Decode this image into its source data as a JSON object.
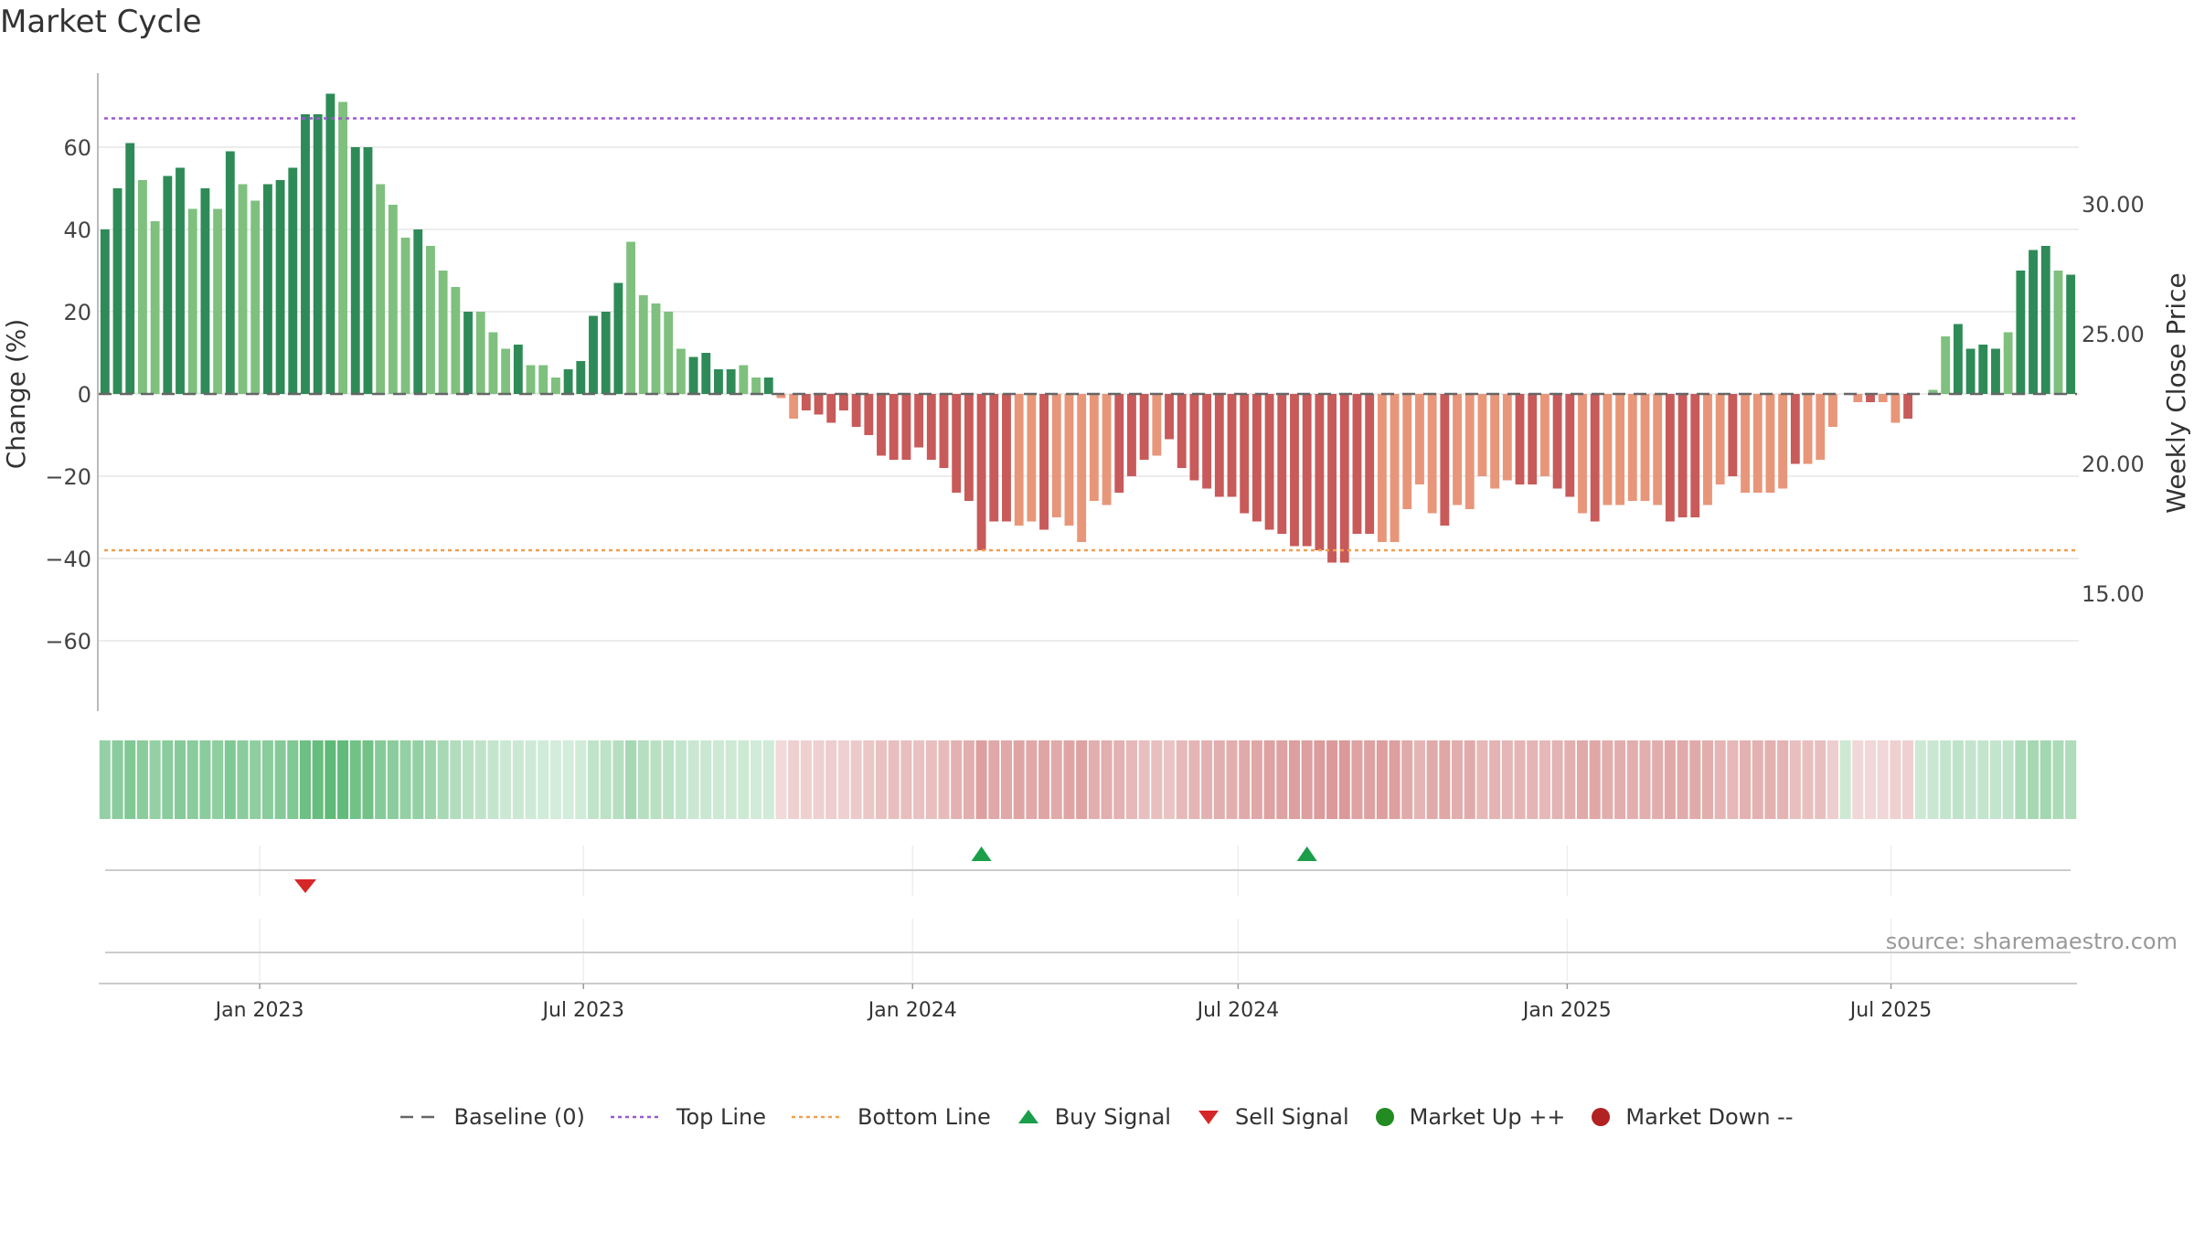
{
  "chart_data": {
    "type": "bar",
    "title": "Market Cycle",
    "ylabel_left": "Change (%)",
    "ylabel_right": "Weekly Close Price",
    "y_left_ticks": [
      60,
      40,
      20,
      0,
      -20,
      -40,
      -60
    ],
    "y_left_tick_labels": [
      "60",
      "40",
      "20",
      "0",
      "−20",
      "−40",
      "−60"
    ],
    "y_left_range": [
      -78,
      78
    ],
    "y_right_ticks": [
      30,
      25,
      20,
      15
    ],
    "y_right_tick_labels": [
      "30.00",
      "25.00",
      "20.00",
      "15.00"
    ],
    "top_line": 67,
    "bottom_line": -38,
    "baseline": 0,
    "x_start_date": "2022-10-03",
    "x_tick_labels": [
      "Jan 2023",
      "Jul 2023",
      "Jan 2024",
      "Jul 2024",
      "Jan 2025",
      "Jul 2025"
    ],
    "grid": true,
    "legend_position": "bottom",
    "colors": {
      "up_strong": "#2e8b57",
      "up_light": "#7fc07f",
      "down_strong": "#c85a5a",
      "down_light": "#e8967a",
      "top_line": "#9b59d0",
      "bottom_line": "#f0a050",
      "buy": "#1a9e4a",
      "sell": "#d62728",
      "market_up": "#228b22",
      "market_down": "#b22222",
      "baseline": "#666666"
    },
    "values": [
      40,
      50,
      61,
      52,
      42,
      53,
      55,
      45,
      50,
      45,
      59,
      51,
      47,
      51,
      52,
      55,
      68,
      68,
      73,
      71,
      60,
      60,
      51,
      46,
      38,
      40,
      36,
      30,
      26,
      20,
      20,
      15,
      11,
      12,
      7,
      7,
      4,
      6,
      8,
      19,
      20,
      27,
      37,
      24,
      22,
      20,
      11,
      9,
      10,
      6,
      6,
      7,
      4,
      4,
      -1,
      -6,
      -4,
      -5,
      -7,
      -4,
      -8,
      -10,
      -15,
      -16,
      -16,
      -13,
      -16,
      -18,
      -24,
      -26,
      -38,
      -31,
      -31,
      -32,
      -31,
      -33,
      -30,
      -32,
      -36,
      -26,
      -27,
      -24,
      -20,
      -16,
      -15,
      -11,
      -18,
      -21,
      -23,
      -25,
      -25,
      -29,
      -31,
      -33,
      -34,
      -37,
      -37,
      -38,
      -41,
      -41,
      -34,
      -34,
      -36,
      -36,
      -28,
      -22,
      -29,
      -32,
      -27,
      -28,
      -20,
      -23,
      -21,
      -22,
      -22,
      -20,
      -23,
      -25,
      -29,
      -31,
      -27,
      -27,
      -26,
      -26,
      -27,
      -31,
      -30,
      -30,
      -27,
      -22,
      -20,
      -24,
      -24,
      -24,
      -23,
      -17,
      -17,
      -16,
      -8,
      0,
      -2,
      -2,
      -2,
      -7,
      -6,
      0,
      1,
      14,
      17,
      11,
      12,
      11,
      15,
      30,
      35,
      36,
      30,
      29
    ],
    "strong_flags": "SSSLLSSLSLSLLSSSSSSLSSLLLSLLLSLLLSLLLSSSSSLLLLLSSSSLLSLLSSSSSSSSSSSSSSSSSLLSLLLLLSSSLSSSSSSSSSSSSSSSSSLLLLLSLLLLLSSLSSLSLLLLLSSSLLSLLLLSLLLLLSLLSLLLSSSSLSSSLSSSSSSSSSSL",
    "heat_intensity": [
      0.55,
      0.6,
      0.65,
      0.6,
      0.55,
      0.6,
      0.62,
      0.6,
      0.6,
      0.58,
      0.65,
      0.6,
      0.58,
      0.6,
      0.62,
      0.65,
      0.75,
      0.78,
      0.82,
      0.8,
      0.72,
      0.72,
      0.62,
      0.6,
      0.55,
      0.55,
      0.5,
      0.45,
      0.4,
      0.35,
      0.33,
      0.3,
      0.27,
      0.27,
      0.25,
      0.24,
      0.22,
      0.22,
      0.24,
      0.32,
      0.34,
      0.38,
      0.46,
      0.38,
      0.36,
      0.34,
      0.3,
      0.28,
      0.28,
      0.26,
      0.26,
      0.26,
      0.24,
      0.24,
      0.24,
      0.3,
      0.3,
      0.3,
      0.32,
      0.3,
      0.34,
      0.36,
      0.4,
      0.42,
      0.42,
      0.4,
      0.42,
      0.44,
      0.5,
      0.52,
      0.62,
      0.56,
      0.56,
      0.58,
      0.56,
      0.58,
      0.55,
      0.58,
      0.6,
      0.52,
      0.52,
      0.5,
      0.46,
      0.42,
      0.42,
      0.38,
      0.45,
      0.48,
      0.5,
      0.52,
      0.52,
      0.55,
      0.57,
      0.6,
      0.6,
      0.62,
      0.62,
      0.64,
      0.66,
      0.66,
      0.6,
      0.6,
      0.62,
      0.62,
      0.55,
      0.48,
      0.55,
      0.57,
      0.53,
      0.54,
      0.46,
      0.49,
      0.47,
      0.48,
      0.48,
      0.46,
      0.49,
      0.51,
      0.55,
      0.57,
      0.53,
      0.53,
      0.52,
      0.52,
      0.53,
      0.56,
      0.55,
      0.55,
      0.53,
      0.48,
      0.46,
      0.5,
      0.5,
      0.5,
      0.49,
      0.42,
      0.42,
      0.41,
      0.32,
      0.26,
      0.26,
      0.26,
      0.26,
      0.3,
      0.3,
      0.26,
      0.28,
      0.3,
      0.33,
      0.3,
      0.3,
      0.3,
      0.33,
      0.42,
      0.46,
      0.47,
      0.42,
      0.41
    ],
    "buy_signals": [
      "2024-02-05",
      "2024-08-05"
    ],
    "sell_signals": [
      "2023-01-23"
    ]
  },
  "source_text": "source: sharemaestro.com",
  "legend": [
    {
      "key": "baseline",
      "label": "Baseline (0)"
    },
    {
      "key": "top",
      "label": "Top Line"
    },
    {
      "key": "bottom",
      "label": "Bottom Line"
    },
    {
      "key": "buy",
      "label": "Buy Signal"
    },
    {
      "key": "sell",
      "label": "Sell Signal"
    },
    {
      "key": "up",
      "label": "Market Up ++"
    },
    {
      "key": "down",
      "label": "Market Down --"
    }
  ]
}
